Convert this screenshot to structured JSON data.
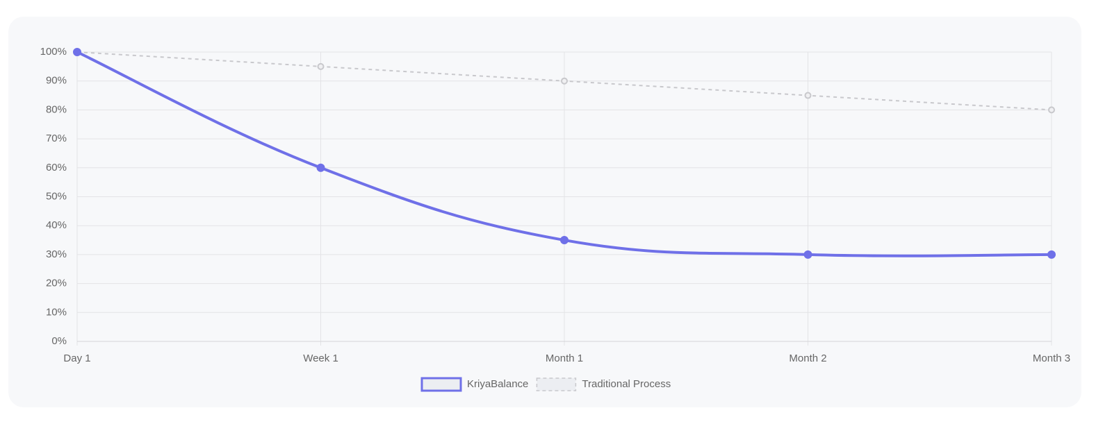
{
  "chart_data": {
    "type": "line",
    "categories": [
      "Day 1",
      "Week 1",
      "Month 1",
      "Month 2",
      "Month 3"
    ],
    "series": [
      {
        "name": "KriyaBalance",
        "color": "#6f70e8",
        "dashed": false,
        "values": [
          100,
          60,
          35,
          30,
          30
        ]
      },
      {
        "name": "Traditional Process",
        "color": "#c8c8cc",
        "dashed": true,
        "values": [
          100,
          95,
          90,
          85,
          80
        ]
      }
    ],
    "ylim": [
      0,
      100
    ],
    "yticks": [
      {
        "value": 0,
        "label": "0%"
      },
      {
        "value": 10,
        "label": "10%"
      },
      {
        "value": 20,
        "label": "20%"
      },
      {
        "value": 30,
        "label": "30%"
      },
      {
        "value": 40,
        "label": "40%"
      },
      {
        "value": 50,
        "label": "50%"
      },
      {
        "value": 60,
        "label": "60%"
      },
      {
        "value": 70,
        "label": "70%"
      },
      {
        "value": 80,
        "label": "80%"
      },
      {
        "value": 90,
        "label": "90%"
      },
      {
        "value": 100,
        "label": "100%"
      }
    ],
    "grid": true,
    "legend": "bottom"
  }
}
